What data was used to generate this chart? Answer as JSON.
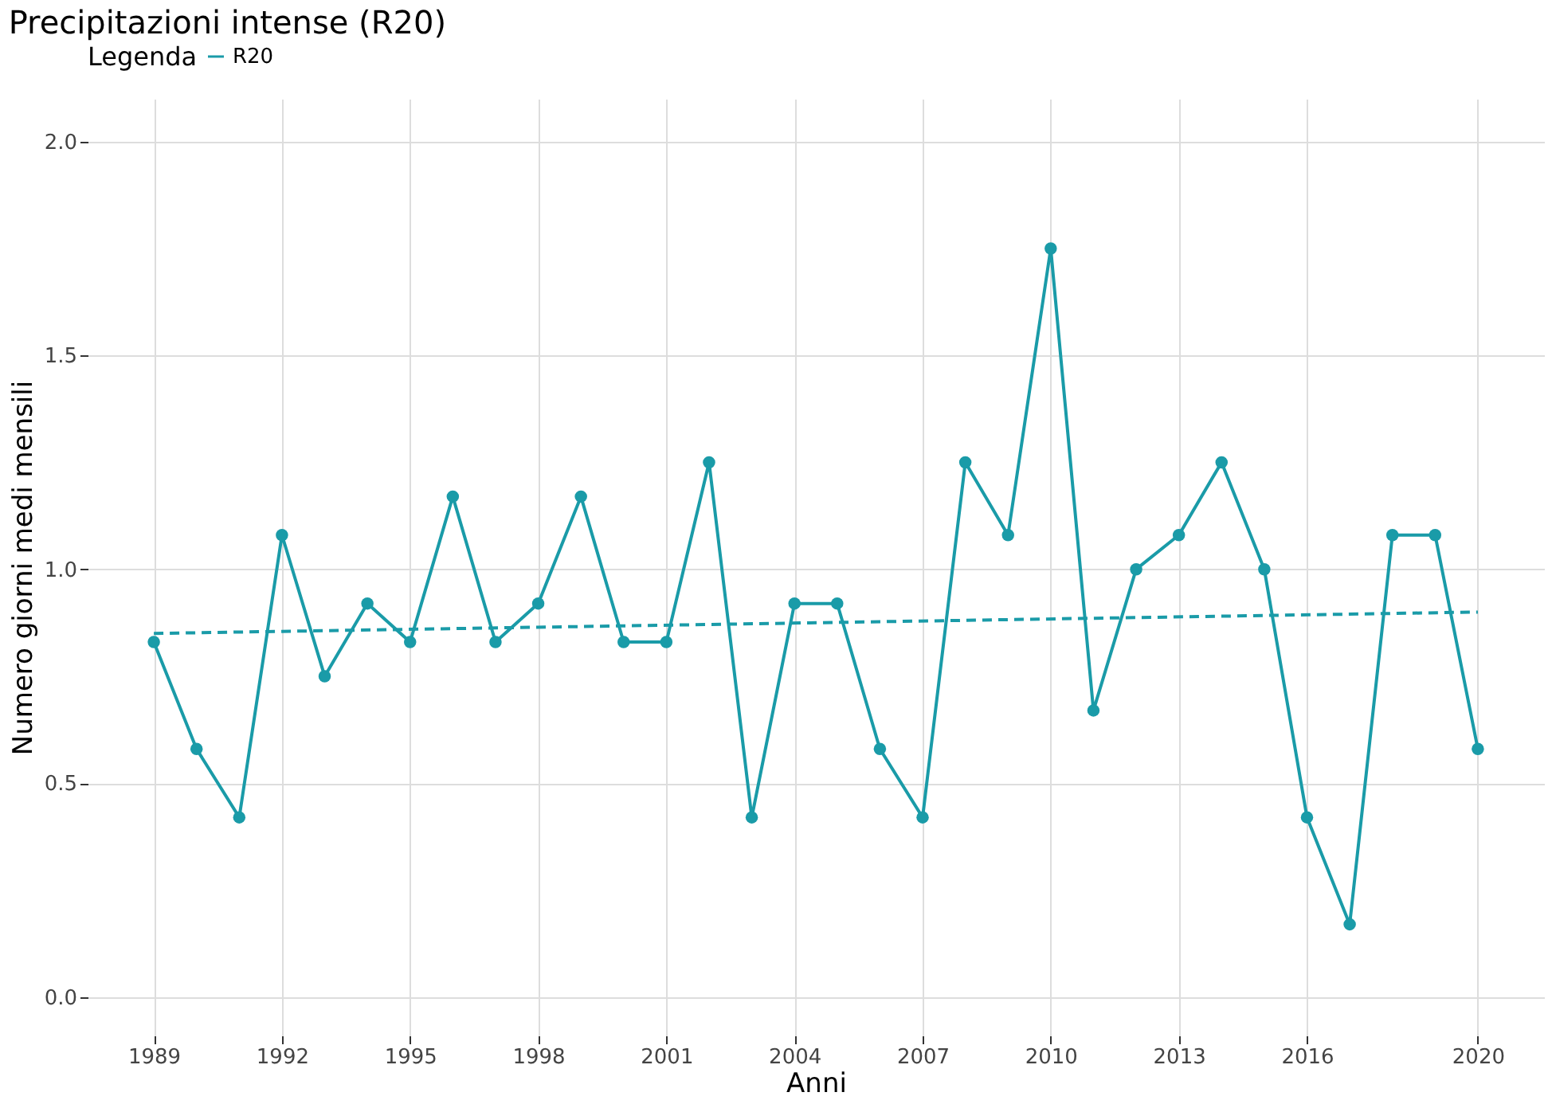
{
  "chart_data": {
    "type": "line",
    "title": "Precipitazioni intense (R20)",
    "xlabel": "Anni",
    "ylabel": "Numero giorni medi mensili",
    "legend_title": "Legenda",
    "legend": "top",
    "grid": true,
    "xlim": [
      1987.45,
      2021.55
    ],
    "ylim": [
      -0.09,
      2.1
    ],
    "xticks": [
      1989,
      1992,
      1995,
      1998,
      2001,
      2004,
      2007,
      2010,
      2013,
      2016,
      2020
    ],
    "yticks": [
      {
        "value": 0,
        "label": "0.0"
      },
      {
        "value": 0.5,
        "label": "0.5"
      },
      {
        "value": 1,
        "label": "1.0"
      },
      {
        "value": 1.5,
        "label": "1.5"
      },
      {
        "value": 2,
        "label": "2.0"
      }
    ],
    "x": [
      1989,
      1990,
      1991,
      1992,
      1993,
      1994,
      1995,
      1996,
      1997,
      1998,
      1999,
      2000,
      2001,
      2002,
      2003,
      2004,
      2005,
      2006,
      2007,
      2008,
      2009,
      2010,
      2011,
      2012,
      2013,
      2014,
      2015,
      2016,
      2017,
      2018,
      2019,
      2020
    ],
    "series": [
      {
        "name": "R20",
        "color": "#1a9ba8",
        "marker": "circle",
        "line_style": "solid",
        "values": [
          0.83,
          0.58,
          0.42,
          1.08,
          0.75,
          0.92,
          0.83,
          1.17,
          0.83,
          0.92,
          1.17,
          0.83,
          0.83,
          1.25,
          0.42,
          0.92,
          0.92,
          0.58,
          0.42,
          1.25,
          1.08,
          1.75,
          0.67,
          1.0,
          1.08,
          1.25,
          1.0,
          0.42,
          0.17,
          1.08,
          1.08,
          0.58
        ]
      },
      {
        "type": "line",
        "color": "#1a9ba8",
        "marker": "none",
        "line_style": "dashed",
        "x": [
          1989,
          2020
        ],
        "values": [
          0.85,
          0.9
        ]
      }
    ]
  }
}
